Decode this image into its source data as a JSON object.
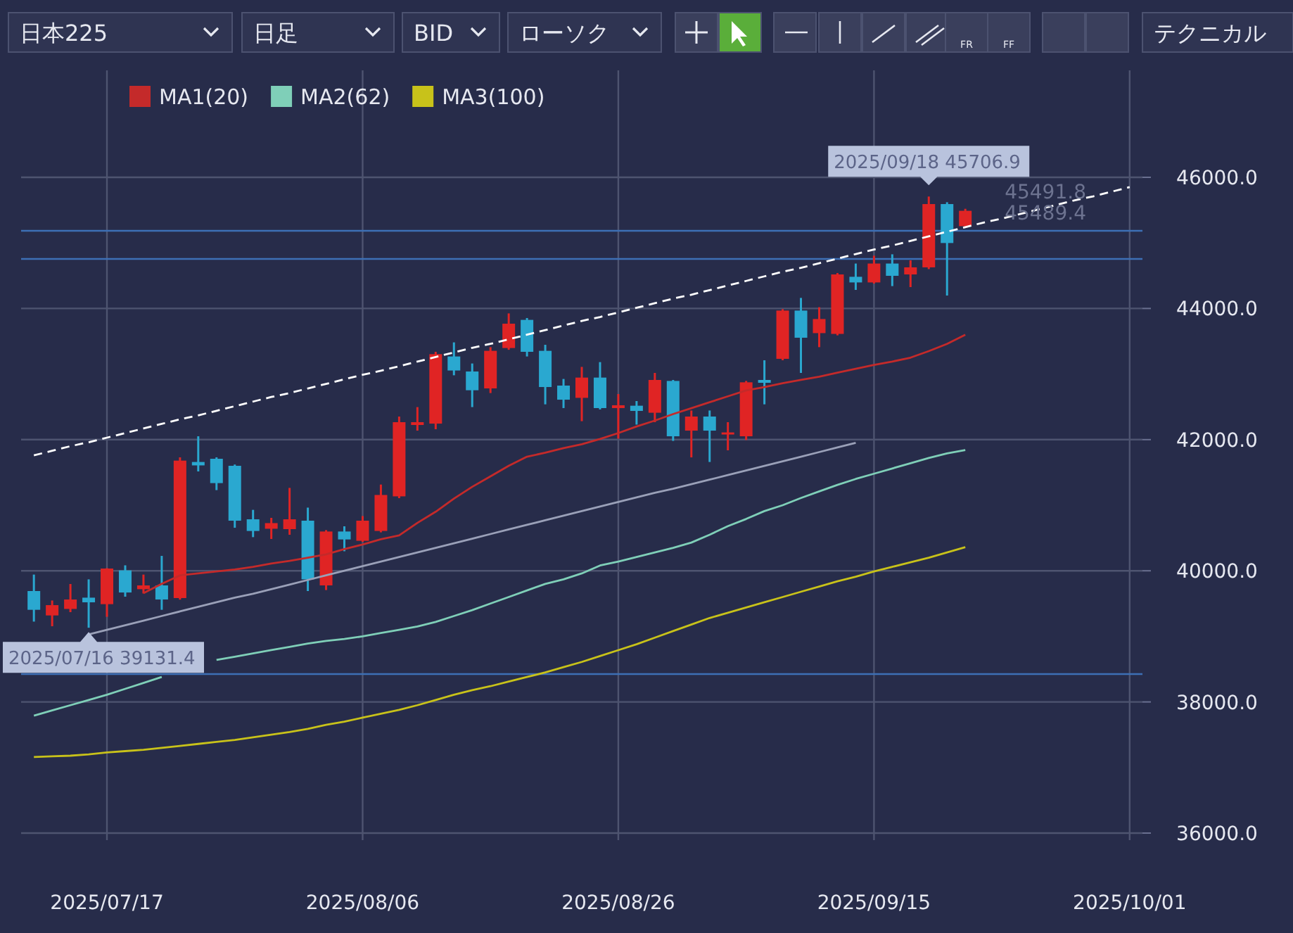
{
  "chart_data": {
    "type": "candlestick",
    "title": "日本225",
    "categories": [
      null,
      null,
      null,
      null,
      "2025/07/17",
      null,
      null,
      null,
      null,
      null,
      null,
      null,
      null,
      null,
      null,
      null,
      null,
      null,
      "2025/08/06",
      null,
      null,
      null,
      null,
      null,
      null,
      null,
      null,
      null,
      null,
      null,
      null,
      null,
      "2025/08/26",
      null,
      null,
      null,
      null,
      null,
      null,
      null,
      null,
      null,
      null,
      null,
      null,
      null,
      "2025/09/15",
      null,
      null,
      null,
      null,
      null,
      null,
      null,
      null,
      null,
      null,
      null,
      null,
      null,
      "2025/10/01"
    ],
    "ohlc": [
      [
        39691,
        39942,
        39225,
        39405
      ],
      [
        39319,
        39547,
        39154,
        39476
      ],
      [
        39418,
        39798,
        39369,
        39562
      ],
      [
        39590,
        39869,
        39131.4,
        39519
      ],
      [
        39491,
        40040,
        39298,
        40034
      ],
      [
        40006,
        40083,
        39605,
        39669
      ],
      [
        39719,
        39942,
        39654,
        39777
      ],
      [
        39777,
        40227,
        39405,
        39562
      ],
      [
        39584,
        41730,
        39560,
        41680
      ],
      [
        41659,
        42051,
        41515,
        41607
      ],
      [
        41708,
        41730,
        41230,
        41337
      ],
      [
        41601,
        41620,
        40656,
        40764
      ],
      [
        40785,
        40929,
        40513,
        40607
      ],
      [
        40641,
        40807,
        40485,
        40727
      ],
      [
        40635,
        41264,
        40549,
        40785
      ],
      [
        40764,
        40963,
        39691,
        39869
      ],
      [
        39777,
        40620,
        39706,
        40599
      ],
      [
        40599,
        40678,
        40298,
        40478
      ],
      [
        40457,
        40835,
        40440,
        40764
      ],
      [
        40607,
        41315,
        40586,
        41156
      ],
      [
        41135,
        42352,
        41107,
        42266
      ],
      [
        42223,
        42496,
        42137,
        42266
      ],
      [
        42244,
        43339,
        42159,
        43303
      ],
      [
        43268,
        43483,
        42981,
        43054
      ],
      [
        43039,
        43161,
        42496,
        42753
      ],
      [
        42781,
        43410,
        42710,
        43354
      ],
      [
        43397,
        43925,
        43370,
        43768
      ],
      [
        43826,
        43854,
        43268,
        43339
      ],
      [
        43354,
        43446,
        42538,
        42802
      ],
      [
        42824,
        42925,
        42481,
        42609
      ],
      [
        42637,
        43109,
        42281,
        42946
      ],
      [
        42946,
        43182,
        42460,
        42481
      ],
      [
        42481,
        42695,
        42015,
        42524
      ],
      [
        42517,
        42588,
        42229,
        42438
      ],
      [
        42410,
        43017,
        42266,
        42910
      ],
      [
        42895,
        42910,
        41981,
        42051
      ],
      [
        42137,
        42444,
        41729,
        42352
      ],
      [
        42352,
        42444,
        41659,
        42137
      ],
      [
        42080,
        42266,
        41837,
        42110
      ],
      [
        42051,
        42895,
        41994,
        42874
      ],
      [
        42910,
        43210,
        42538,
        42867
      ],
      [
        43232,
        43990,
        43210,
        43968
      ],
      [
        43968,
        44161,
        43017,
        43554
      ],
      [
        43624,
        44019,
        43410,
        43839
      ],
      [
        43612,
        44540,
        43590,
        44519
      ],
      [
        44483,
        44685,
        44283,
        44397
      ],
      [
        44397,
        44805,
        44380,
        44685
      ],
      [
        44685,
        44826,
        44341,
        44498
      ],
      [
        44519,
        44734,
        44326,
        44627
      ],
      [
        44627,
        45706.9,
        44600,
        45592
      ],
      [
        45592,
        45620,
        44197,
        44998
      ],
      [
        45255,
        45520,
        45230,
        45489.4
      ],
      null,
      null,
      null,
      null,
      null,
      null,
      null,
      null,
      null
    ],
    "colors": [
      "#2aa8d0",
      "#e02424",
      "#e02424",
      "#2aa8d0",
      "#e02424",
      "#2aa8d0",
      "#e02424",
      "#2aa8d0",
      "#e02424",
      "#2aa8d0",
      "#2aa8d0",
      "#2aa8d0",
      "#2aa8d0",
      "#e02424",
      "#e02424",
      "#2aa8d0",
      "#e02424",
      "#2aa8d0",
      "#e02424",
      "#e02424",
      "#e02424",
      "#e02424",
      "#e02424",
      "#2aa8d0",
      "#2aa8d0",
      "#e02424",
      "#e02424",
      "#2aa8d0",
      "#2aa8d0",
      "#2aa8d0",
      "#e02424",
      "#2aa8d0",
      "#e02424",
      "#2aa8d0",
      "#e02424",
      "#2aa8d0",
      "#e02424",
      "#2aa8d0",
      "#e02424",
      "#e02424",
      "#2aa8d0",
      "#e02424",
      "#2aa8d0",
      "#e02424",
      "#e02424",
      "#2aa8d0",
      "#e02424",
      "#2aa8d0",
      "#e02424",
      "#e02424",
      "#2aa8d0",
      "#e02424",
      null,
      null,
      null,
      null,
      null,
      null,
      null,
      null,
      null
    ],
    "series": [
      {
        "name": "MA1(20)",
        "type": "line",
        "color": "#c42a2a",
        "values": [
          null,
          null,
          null,
          null,
          null,
          null,
          39660,
          39800,
          39930,
          39960,
          39990,
          40020,
          40060,
          40110,
          40150,
          40200,
          40250,
          40330,
          40400,
          40480,
          40540,
          40730,
          40900,
          41100,
          41280,
          41440,
          41600,
          41740,
          41800,
          41870,
          41930,
          42010,
          42100,
          42200,
          42290,
          42390,
          42480,
          42570,
          42660,
          42750,
          42800,
          42860,
          42910,
          42960,
          43020,
          43080,
          43140,
          43190,
          43250,
          43350,
          43460,
          43600,
          null,
          null,
          null,
          null,
          null,
          null,
          null,
          null,
          null
        ]
      },
      {
        "name": "MA2(62)",
        "type": "line",
        "color": "#7fcfb8",
        "values": [
          37790,
          37870,
          37950,
          38030,
          38110,
          38200,
          38290,
          38380,
          null,
          null,
          38640,
          38690,
          38740,
          38790,
          38840,
          38890,
          38930,
          38960,
          39000,
          39050,
          39100,
          39150,
          39220,
          39310,
          39400,
          39500,
          39600,
          39700,
          39800,
          39870,
          39960,
          40080,
          40140,
          40210,
          40280,
          40350,
          40430,
          40550,
          40680,
          40790,
          40910,
          41000,
          41110,
          41210,
          41310,
          41400,
          41480,
          41560,
          41640,
          41720,
          41790,
          41840,
          null,
          null,
          null,
          null,
          null,
          null,
          null,
          null,
          null
        ]
      },
      {
        "name": "MA3(100)",
        "type": "line",
        "color": "#c8c21a",
        "values": [
          37160,
          37170,
          37180,
          37200,
          37230,
          37250,
          37270,
          37300,
          37330,
          37360,
          37390,
          37420,
          37460,
          37500,
          37540,
          37590,
          37650,
          37700,
          37760,
          37820,
          37880,
          37950,
          38030,
          38110,
          38180,
          38240,
          38310,
          38380,
          38450,
          38530,
          38610,
          38700,
          38790,
          38880,
          38980,
          39080,
          39180,
          39280,
          39360,
          39440,
          39520,
          39600,
          39680,
          39760,
          39840,
          39910,
          39990,
          40060,
          40130,
          40200,
          40280,
          40360,
          null,
          null,
          null,
          null,
          null,
          null,
          null,
          null,
          null
        ]
      },
      {
        "type": "line",
        "color": "#ffffff",
        "line_style": "dashed",
        "values": [
          41760,
          41830,
          41900,
          41960,
          42030,
          42100,
          42170,
          42240,
          42310,
          42370,
          42440,
          42510,
          42580,
          42650,
          42710,
          42780,
          42850,
          42920,
          42990,
          43050,
          43120,
          43190,
          43260,
          43330,
          43400,
          43460,
          43530,
          43600,
          43670,
          43740,
          43810,
          43870,
          43940,
          44010,
          44080,
          44150,
          44210,
          44280,
          44350,
          44420,
          44490,
          44560,
          44620,
          44690,
          44760,
          44830,
          44900,
          44960,
          45030,
          45100,
          45170,
          45240,
          45310,
          45370,
          45440,
          45510,
          45580,
          45650,
          45710,
          45780,
          45850
        ]
      },
      {
        "type": "line",
        "color": "#9aa0b8",
        "values": [
          null,
          null,
          null,
          39030,
          39100,
          39170,
          39240,
          39310,
          39380,
          39450,
          39520,
          39590,
          39650,
          39720,
          39790,
          39860,
          39930,
          40000,
          40070,
          40140,
          40210,
          40280,
          40350,
          40420,
          40490,
          40560,
          40630,
          40700,
          40770,
          40840,
          40910,
          40980,
          41050,
          41120,
          41190,
          41250,
          41320,
          41390,
          41460,
          41530,
          41600,
          41670,
          41740,
          41810,
          41880,
          41950,
          null,
          null,
          null,
          null,
          null,
          null,
          null,
          null,
          null,
          null,
          null,
          null,
          null,
          null,
          null
        ]
      }
    ],
    "ylim": [
      36000,
      46000
    ],
    "yticks": [
      {
        "value": 36000,
        "label": "36000.0"
      },
      {
        "value": 38000,
        "label": "38000.0"
      },
      {
        "value": 40000,
        "label": "40000.0"
      },
      {
        "value": 42000,
        "label": "42000.0"
      },
      {
        "value": 44000,
        "label": "44000.0"
      },
      {
        "value": 46000,
        "label": "46000.0"
      }
    ],
    "grid": true,
    "legend": "top left",
    "marker": "none",
    "ref_lines": [
      {
        "axis": "y",
        "value": 45185,
        "color": "#3d6fb5"
      },
      {
        "axis": "y",
        "value": 44755,
        "color": "#3d6fb5"
      },
      {
        "axis": "y",
        "value": 38425,
        "color": "#3d6fb5"
      }
    ],
    "annotations": [
      "日足",
      "BID",
      "ローソク",
      "テクニカル",
      "FR",
      "FF",
      "2025/09/18 45706.9",
      "2025/07/16 39131.4",
      "45491.8",
      "45489.4"
    ]
  }
}
